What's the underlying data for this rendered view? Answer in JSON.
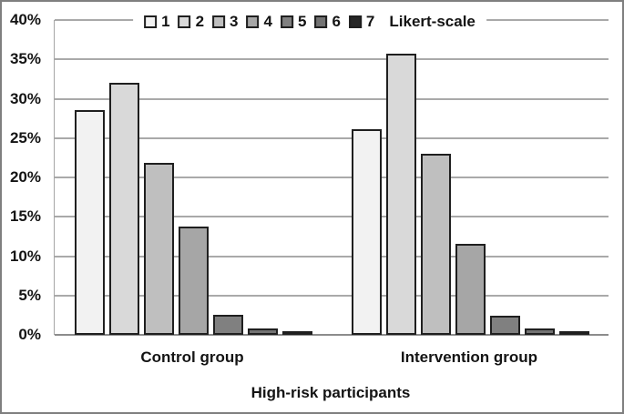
{
  "figure": {
    "background": "#ffffff",
    "border_color": "#7f7f7f",
    "gridline_color": "#a9a9a9",
    "bar_outline_color": "#1f1f1f"
  },
  "chart_data": {
    "type": "bar",
    "title": "",
    "categories": [
      "Control group",
      "Intervention group"
    ],
    "series": [
      {
        "name": "1",
        "color": "#f2f2f2",
        "values": [
          28.6,
          26.1
        ]
      },
      {
        "name": "2",
        "color": "#d9d9d9",
        "values": [
          32.0,
          35.7
        ]
      },
      {
        "name": "3",
        "color": "#bfbfbf",
        "values": [
          21.8,
          23.0
        ]
      },
      {
        "name": "4",
        "color": "#a6a6a6",
        "values": [
          13.8,
          11.6
        ]
      },
      {
        "name": "5",
        "color": "#808080",
        "values": [
          2.6,
          2.4
        ]
      },
      {
        "name": "6",
        "color": "#737373",
        "values": [
          0.8,
          0.8
        ]
      },
      {
        "name": "7",
        "color": "#262626",
        "values": [
          0.2,
          0.3
        ]
      }
    ],
    "legend_suffix": "Likert-scale",
    "legend_position": "top-center",
    "xlabel": "High-risk participants",
    "ylabel": "",
    "ylim": [
      0,
      40
    ],
    "ytick_step": 5,
    "ytick_labels": [
      "0%",
      "5%",
      "10%",
      "15%",
      "20%",
      "25%",
      "30%",
      "35%",
      "40%"
    ],
    "grid": true
  }
}
